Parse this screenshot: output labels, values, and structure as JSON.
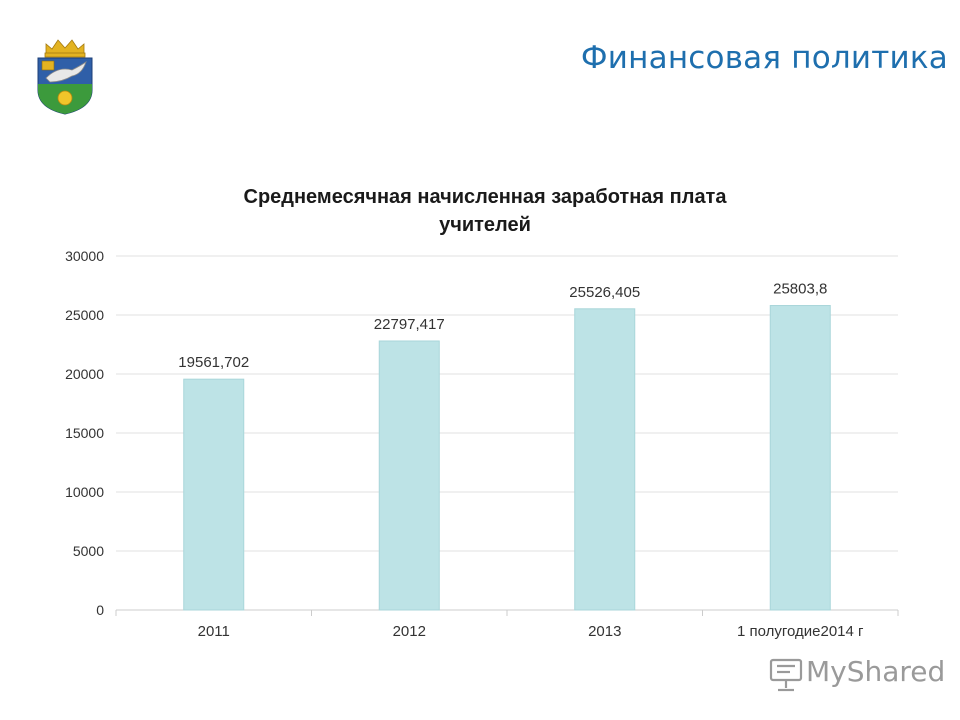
{
  "header": {
    "title": "Финансовая политика",
    "emblem_icon": "coat-of-arms-icon"
  },
  "colors": {
    "title": "#1e6fae",
    "bar_fill": "#bde3e6",
    "bar_stroke": "#a9d6da",
    "grid": "#e2e2e2",
    "axis_text": "#333333"
  },
  "chart_data": {
    "type": "bar",
    "title_line1": "Среднемесячная начисленная заработная плата",
    "title_line2": "учителей",
    "categories": [
      "2011",
      "2012",
      "2013",
      "1 полугодие2014 г"
    ],
    "values": [
      19561.702,
      22797.417,
      25526.405,
      25803.8
    ],
    "value_labels": [
      "19561,702",
      "22797,417",
      "25526,405",
      "25803,8"
    ],
    "yticks": [
      "0",
      "5000",
      "10000",
      "15000",
      "20000",
      "25000",
      "30000"
    ],
    "ylim": [
      0,
      30000
    ],
    "grid": true,
    "legend": false
  },
  "watermark": {
    "text": "MyShared",
    "icon": "presentation-icon"
  }
}
